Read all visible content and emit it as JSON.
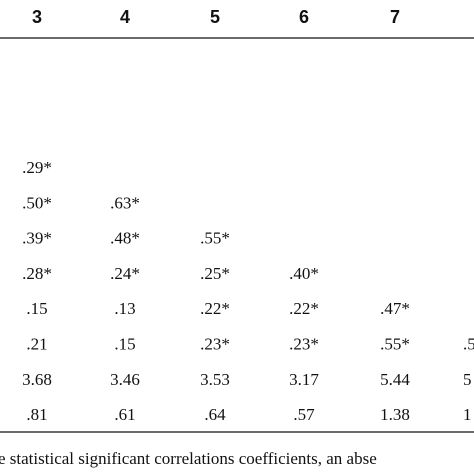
{
  "table": {
    "header": [
      "3",
      "4",
      "5",
      "6",
      "7"
    ],
    "rows": [
      [
        ".29*"
      ],
      [
        ".50*",
        ".63*"
      ],
      [
        ".39*",
        ".48*",
        ".55*"
      ],
      [
        ".28*",
        ".24*",
        ".25*",
        ".40*"
      ],
      [
        ".15",
        ".13",
        ".22*",
        ".22*",
        ".47*"
      ],
      [
        ".21",
        ".15",
        ".23*",
        ".23*",
        ".55*",
        ".5"
      ],
      [
        "3.68",
        "3.46",
        "3.53",
        "3.17",
        "5.44",
        "5"
      ],
      [
        ".81",
        ".61",
        ".64",
        ".57",
        "1.38",
        "1"
      ]
    ],
    "footnote": "e statistical significant correlations coefficients, an abse"
  }
}
